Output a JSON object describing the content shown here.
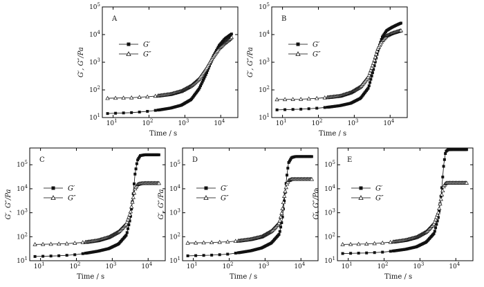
{
  "chart_data": [
    {
      "panel": "A",
      "type": "scatter",
      "xlabel": "Time / s",
      "ylabel": "G′, G″/Pa",
      "xscale": "log",
      "yscale": "log",
      "xlim": [
        5,
        30000
      ],
      "ylim": [
        10,
        100000
      ],
      "xticks": [
        10,
        100,
        1000,
        10000
      ],
      "yticks": [
        10,
        100,
        1000,
        10000,
        100000
      ],
      "legend_position": "upper-left",
      "series": [
        {
          "name": "G′",
          "marker": "filled-square",
          "x": [
            7,
            30,
            60,
            100,
            200,
            400,
            800,
            1500,
            2500,
            4000,
            6000,
            9000,
            13000,
            17000,
            20000
          ],
          "y": [
            14,
            15,
            16,
            17,
            19,
            22,
            28,
            45,
            110,
            400,
            1500,
            4000,
            7000,
            9000,
            10500
          ]
        },
        {
          "name": "G″",
          "marker": "open-triangle",
          "x": [
            7,
            30,
            60,
            100,
            200,
            400,
            800,
            1500,
            2500,
            4000,
            6000,
            9000,
            13000,
            17000,
            20000
          ],
          "y": [
            50,
            52,
            55,
            57,
            62,
            70,
            90,
            140,
            250,
            600,
            1500,
            3200,
            5000,
            6500,
            8000
          ]
        }
      ]
    },
    {
      "panel": "B",
      "type": "scatter",
      "xlabel": "Time / s",
      "ylabel": "G′, G″/Pa",
      "xscale": "log",
      "yscale": "log",
      "xlim": [
        5,
        30000
      ],
      "ylim": [
        10,
        100000
      ],
      "xticks": [
        10,
        100,
        1000,
        10000
      ],
      "yticks": [
        10,
        100,
        1000,
        10000,
        100000
      ],
      "legend_position": "upper-left",
      "series": [
        {
          "name": "G′",
          "marker": "filled-square",
          "x": [
            7,
            30,
            60,
            100,
            200,
            400,
            800,
            1500,
            2500,
            3500,
            4500,
            6000,
            8000,
            11000,
            15000,
            20000
          ],
          "y": [
            19,
            20,
            21,
            22,
            24,
            27,
            33,
            50,
            120,
            600,
            2500,
            8000,
            14000,
            18000,
            22000,
            26000
          ]
        },
        {
          "name": "G″",
          "marker": "open-triangle",
          "x": [
            7,
            30,
            60,
            100,
            200,
            400,
            800,
            1500,
            2500,
            3500,
            4500,
            6000,
            8000,
            11000,
            15000,
            20000
          ],
          "y": [
            45,
            46,
            48,
            50,
            54,
            60,
            80,
            130,
            300,
            1000,
            3000,
            6000,
            9000,
            11000,
            12500,
            14000
          ]
        }
      ]
    },
    {
      "panel": "C",
      "type": "scatter",
      "xlabel": "Time / s",
      "ylabel": "G′, G″/Pa",
      "xscale": "log",
      "yscale": "log",
      "xlim": [
        5,
        30000
      ],
      "ylim": [
        10,
        500000
      ],
      "xticks": [
        10,
        100,
        1000,
        10000
      ],
      "yticks": [
        10,
        100,
        1000,
        10000,
        100000
      ],
      "legend_position": "middle-left",
      "series": [
        {
          "name": "G′",
          "marker": "filled-square",
          "x": [
            7,
            30,
            60,
            100,
            200,
            400,
            800,
            1500,
            2500,
            3200,
            3800,
            4300,
            5000,
            6000,
            8000,
            12000,
            20000
          ],
          "y": [
            15,
            16,
            17,
            18,
            21,
            25,
            32,
            50,
            120,
            600,
            5000,
            40000,
            150000,
            240000,
            260000,
            260000,
            260000
          ]
        },
        {
          "name": "G″",
          "marker": "open-triangle",
          "x": [
            7,
            30,
            60,
            100,
            200,
            400,
            800,
            1500,
            2500,
            3200,
            3800,
            4300,
            5000,
            6000,
            8000,
            12000,
            20000
          ],
          "y": [
            48,
            50,
            52,
            55,
            60,
            70,
            95,
            160,
            350,
            1000,
            4000,
            10000,
            15000,
            16500,
            17000,
            17000,
            17000
          ]
        }
      ]
    },
    {
      "panel": "D",
      "type": "scatter",
      "xlabel": "Time / s",
      "ylabel": "G′, G″/Pa",
      "xscale": "log",
      "yscale": "log",
      "xlim": [
        5,
        30000
      ],
      "ylim": [
        10,
        500000
      ],
      "xticks": [
        10,
        100,
        1000,
        10000
      ],
      "yticks": [
        10,
        100,
        1000,
        10000,
        100000
      ],
      "legend_position": "middle-left",
      "series": [
        {
          "name": "G′",
          "marker": "filled-square",
          "x": [
            7,
            30,
            60,
            100,
            200,
            400,
            800,
            1500,
            2500,
            3000,
            3500,
            4000,
            4500,
            5500,
            7000,
            10000,
            20000
          ],
          "y": [
            16,
            17,
            18,
            19,
            22,
            26,
            34,
            55,
            130,
            500,
            4000,
            30000,
            120000,
            200000,
            220000,
            220000,
            220000
          ]
        },
        {
          "name": "G″",
          "marker": "open-triangle",
          "x": [
            7,
            30,
            60,
            100,
            200,
            400,
            800,
            1500,
            2500,
            3000,
            3500,
            4000,
            4500,
            5500,
            7000,
            10000,
            20000
          ],
          "y": [
            55,
            57,
            60,
            62,
            68,
            78,
            100,
            170,
            380,
            1200,
            6000,
            15000,
            22000,
            25000,
            25000,
            25000,
            25000
          ]
        }
      ]
    },
    {
      "panel": "E",
      "type": "scatter",
      "xlabel": "Time / s",
      "ylabel": "G′, G″/Pa",
      "xscale": "log",
      "yscale": "log",
      "xlim": [
        5,
        30000
      ],
      "ylim": [
        10,
        500000
      ],
      "xticks": [
        10,
        100,
        1000,
        10000
      ],
      "yticks": [
        10,
        100,
        1000,
        10000,
        100000
      ],
      "legend_position": "middle-left",
      "series": [
        {
          "name": "G′",
          "marker": "filled-square",
          "x": [
            7,
            30,
            60,
            100,
            200,
            400,
            800,
            1500,
            2500,
            3300,
            4000,
            4600,
            5200,
            6000,
            8000,
            12000,
            20000
          ],
          "y": [
            20,
            21,
            22,
            23,
            26,
            30,
            38,
            60,
            140,
            700,
            8000,
            100000,
            350000,
            420000,
            430000,
            430000,
            430000
          ]
        },
        {
          "name": "G″",
          "marker": "open-triangle",
          "x": [
            7,
            30,
            60,
            100,
            200,
            400,
            800,
            1500,
            2500,
            3300,
            4000,
            4600,
            5200,
            6000,
            8000,
            12000,
            20000
          ],
          "y": [
            48,
            50,
            53,
            56,
            62,
            72,
            95,
            160,
            360,
            1100,
            5000,
            13000,
            17000,
            17500,
            17500,
            17500,
            17500
          ]
        }
      ]
    }
  ]
}
